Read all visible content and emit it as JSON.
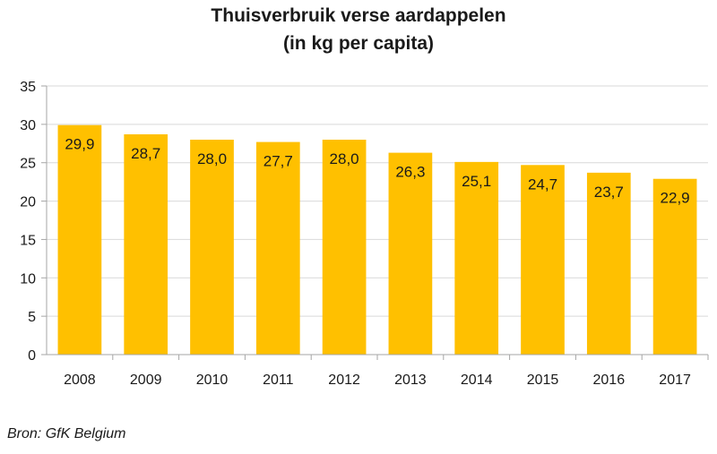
{
  "chart_data": {
    "type": "bar",
    "title": "Thuisverbruik verse aardappelen",
    "subtitle": "(in kg per capita)",
    "categories": [
      "2008",
      "2009",
      "2010",
      "2011",
      "2012",
      "2013",
      "2014",
      "2015",
      "2016",
      "2017"
    ],
    "values": [
      29.9,
      28.7,
      28.0,
      27.7,
      28.0,
      26.3,
      25.1,
      24.7,
      23.7,
      22.9
    ],
    "data_labels": [
      "29,9",
      "28,7",
      "28,0",
      "27,7",
      "28,0",
      "26,3",
      "25,1",
      "24,7",
      "23,7",
      "22,9"
    ],
    "y_ticks": [
      0,
      5,
      10,
      15,
      20,
      25,
      30,
      35
    ],
    "ylim": [
      0,
      35
    ],
    "xlabel": "",
    "ylabel": "",
    "grid": true,
    "legend": "none",
    "bar_color": "#FFC000",
    "grid_color": "#D9D9D9"
  },
  "source": "Bron: GfK Belgium"
}
